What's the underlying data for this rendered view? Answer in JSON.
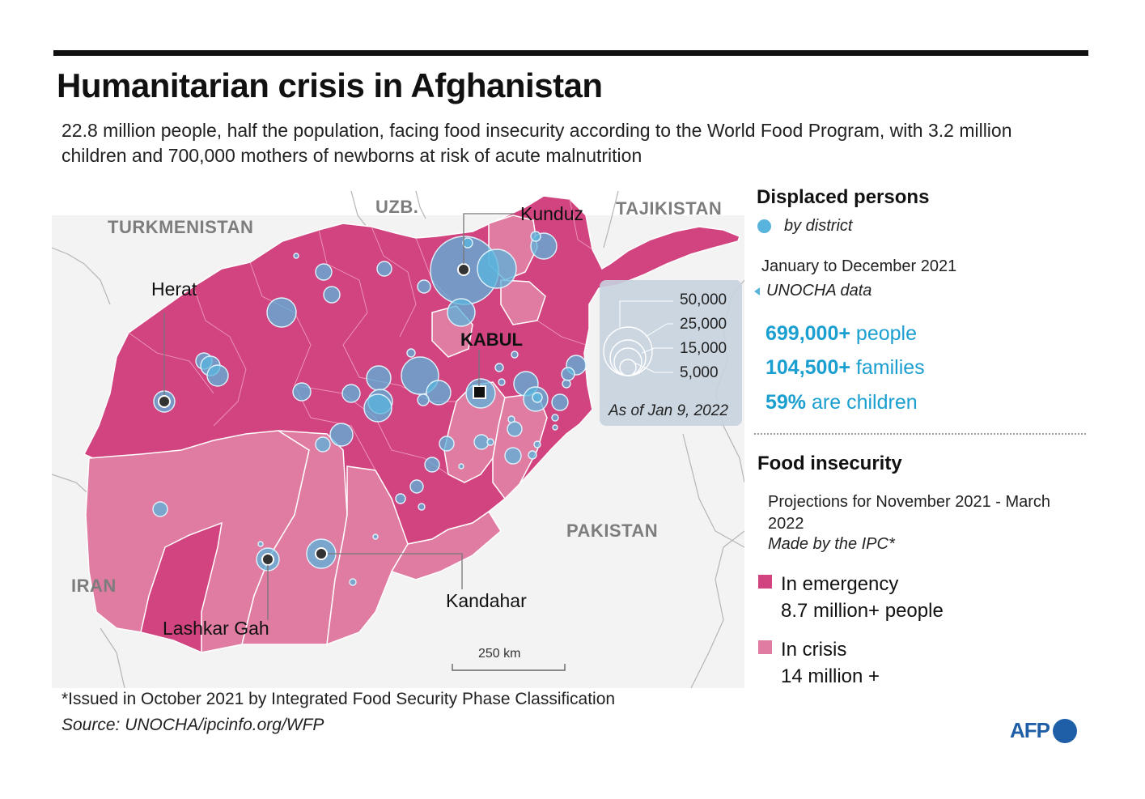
{
  "title": "Humanitarian crisis in Afghanistan",
  "subtitle": "22.8 million people, half the population, facing food insecurity according to the World Food Program, with 3.2 million children and 700,000 mothers of newborns at risk of acute malnutrition",
  "colors": {
    "emergency": "#d2447f",
    "crisis": "#e07ca1",
    "displaced_bubble": "#58b4dc",
    "neighbour_land": "#f1f1f1",
    "stat_text": "#1b9fd0",
    "afp_blue": "#1f5fa8"
  },
  "map": {
    "countries": {
      "turkmenistan": "TURKMENISTAN",
      "uzbekistan": "UZB.",
      "tajikistan": "TAJIKISTAN",
      "pakistan": "PAKISTAN",
      "iran": "IRAN"
    },
    "cities": {
      "kunduz": "Kunduz",
      "herat": "Herat",
      "kabul": "KABUL",
      "kandahar": "Kandahar",
      "lashkar_gah": "Lashkar Gah"
    },
    "bubble_legend": {
      "values": [
        "50,000",
        "25,000",
        "15,000",
        "5,000"
      ],
      "date_note": "As of Jan 9, 2022"
    },
    "scale_bar": "250 km"
  },
  "displaced": {
    "title": "Displaced persons",
    "by_district": "by district",
    "period": "January to December 2021",
    "data_source": "UNOCHA data",
    "stats": [
      {
        "value": "699,000+",
        "label": " people"
      },
      {
        "value": "104,500+",
        "label": " families"
      },
      {
        "value": "59%",
        "label": " are children"
      }
    ]
  },
  "food_insecurity": {
    "title": "Food insecurity",
    "projection": "Projections for November 2021 - March 2022",
    "made_by": "Made by the IPC*",
    "emergency_label": "In emergency",
    "emergency_value": "8.7 million+ people",
    "crisis_label": "In crisis",
    "crisis_value": "14 million +"
  },
  "footnote": "*Issued in October 2021 by Integrated Food Security Phase Classification",
  "source": "Source: UNOCHA/ipcinfo.org/WFP",
  "logo": "AFP"
}
